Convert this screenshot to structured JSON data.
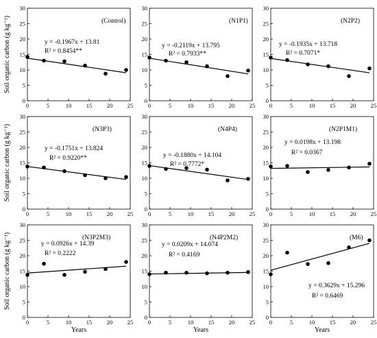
{
  "ylabel": "Soil organic carbon (g kg⁻¹)",
  "xlabel": "Years",
  "chart_data": [
    {
      "type": "scatter",
      "label": "(Control)",
      "equation": "y = -0.1967x + 13.81",
      "r2": "R² = 0.8454**",
      "x": [
        0,
        4,
        9,
        14,
        19,
        24
      ],
      "y": [
        14.2,
        13.0,
        12.8,
        11.4,
        8.8,
        10.0
      ],
      "fit": {
        "slope": -0.1967,
        "intercept": 13.81
      },
      "xlim": [
        0,
        25
      ],
      "ylim": [
        0,
        30
      ],
      "xticks": [
        0,
        5,
        10,
        15,
        20,
        25
      ],
      "yticks": [
        0,
        5,
        10,
        15,
        20,
        25,
        30
      ]
    },
    {
      "type": "scatter",
      "label": "(N1P1)",
      "equation": "y = -0.2119x + 13.795",
      "r2": "R² = 0.7933**",
      "x": [
        0,
        4,
        9,
        14,
        19,
        24
      ],
      "y": [
        14.0,
        13.0,
        12.5,
        11.2,
        8.0,
        9.8
      ],
      "fit": {
        "slope": -0.2119,
        "intercept": 13.795
      },
      "xlim": [
        0,
        25
      ],
      "ylim": [
        0,
        30
      ],
      "xticks": [
        0,
        5,
        10,
        15,
        20,
        25
      ],
      "yticks": [
        0,
        5,
        10,
        15,
        20,
        25,
        30
      ]
    },
    {
      "type": "scatter",
      "label": "(N2P2)",
      "equation": "y = -0.1935x + 13.718",
      "r2": "R² = 0.7071*",
      "x": [
        0,
        4,
        9,
        14,
        19,
        24
      ],
      "y": [
        14.0,
        13.2,
        11.8,
        11.2,
        8.0,
        10.5
      ],
      "fit": {
        "slope": -0.1935,
        "intercept": 13.718
      },
      "xlim": [
        0,
        25
      ],
      "ylim": [
        0,
        30
      ],
      "xticks": [
        0,
        5,
        10,
        15,
        20,
        25
      ],
      "yticks": [
        0,
        5,
        10,
        15,
        20,
        25,
        30
      ]
    },
    {
      "type": "scatter",
      "label": "(N3P3)",
      "equation": "y = -0.1751x + 13.824",
      "r2": "R² = 0.9220**",
      "x": [
        0,
        4,
        9,
        14,
        19,
        24
      ],
      "y": [
        13.8,
        13.5,
        12.3,
        11.0,
        10.0,
        10.4
      ],
      "fit": {
        "slope": -0.1751,
        "intercept": 13.824
      },
      "xlim": [
        0,
        25
      ],
      "ylim": [
        0,
        30
      ],
      "xticks": [
        0,
        5,
        10,
        15,
        20,
        25
      ],
      "yticks": [
        0,
        5,
        10,
        15,
        20,
        25,
        30
      ]
    },
    {
      "type": "scatter",
      "label": "(N4P4)",
      "equation": "y = -0.1880x + 14.104",
      "r2": "R² = 0.7772*",
      "x": [
        0,
        4,
        9,
        14,
        19,
        24
      ],
      "y": [
        14.0,
        13.0,
        13.3,
        12.8,
        9.3,
        9.8
      ],
      "fit": {
        "slope": -0.188,
        "intercept": 14.104
      },
      "xlim": [
        0,
        25
      ],
      "ylim": [
        0,
        30
      ],
      "xticks": [
        0,
        5,
        10,
        15,
        20,
        25
      ],
      "yticks": [
        0,
        5,
        10,
        15,
        20,
        25,
        30
      ]
    },
    {
      "type": "scatter",
      "label": "(N2P1M1)",
      "equation": "y = 0.0198x + 13.198",
      "r2": "R² = 0.0367",
      "x": [
        0,
        4,
        9,
        14,
        19,
        24
      ],
      "y": [
        13.8,
        14.0,
        12.0,
        12.7,
        13.5,
        14.7
      ],
      "fit": {
        "slope": 0.0198,
        "intercept": 13.198
      },
      "xlim": [
        0,
        25
      ],
      "ylim": [
        0,
        30
      ],
      "xticks": [
        0,
        5,
        10,
        15,
        20,
        25
      ],
      "yticks": [
        0,
        5,
        10,
        15,
        20,
        25,
        30
      ]
    },
    {
      "type": "scatter",
      "label": "(N3P2M3)",
      "equation": "y = 0.0926x + 14.39",
      "r2": "R² = 0.2222",
      "x": [
        0,
        4,
        9,
        14,
        19,
        24
      ],
      "y": [
        13.8,
        17.4,
        13.8,
        14.8,
        15.7,
        18.0
      ],
      "fit": {
        "slope": 0.0926,
        "intercept": 14.39
      },
      "xlim": [
        0,
        25
      ],
      "ylim": [
        0,
        30
      ],
      "xticks": [
        0,
        5,
        10,
        15,
        20,
        25
      ],
      "yticks": [
        0,
        5,
        10,
        15,
        20,
        25,
        30
      ]
    },
    {
      "type": "scatter",
      "label": "(N4P2M2)",
      "equation": "y = 0.0209x + 14.074",
      "r2": "R² = 0.4169",
      "x": [
        0,
        4,
        9,
        14,
        19,
        24
      ],
      "y": [
        14.0,
        14.5,
        14.5,
        14.3,
        14.5,
        14.7
      ],
      "fit": {
        "slope": 0.0209,
        "intercept": 14.074
      },
      "xlim": [
        0,
        25
      ],
      "ylim": [
        0,
        30
      ],
      "xticks": [
        0,
        5,
        10,
        15,
        20,
        25
      ],
      "yticks": [
        0,
        5,
        10,
        15,
        20,
        25,
        30
      ]
    },
    {
      "type": "scatter",
      "label": "(M6)",
      "equation": "y = 0.3629x + 15.296",
      "r2": "R² = 0.6469",
      "x": [
        0,
        4,
        9,
        14,
        19,
        24
      ],
      "y": [
        14.0,
        21.0,
        17.3,
        17.6,
        22.7,
        25.0
      ],
      "fit": {
        "slope": 0.3629,
        "intercept": 15.296
      },
      "xlim": [
        0,
        25
      ],
      "ylim": [
        0,
        30
      ],
      "xticks": [
        0,
        5,
        10,
        15,
        20,
        25
      ],
      "yticks": [
        0,
        5,
        10,
        15,
        20,
        25,
        30
      ]
    }
  ]
}
